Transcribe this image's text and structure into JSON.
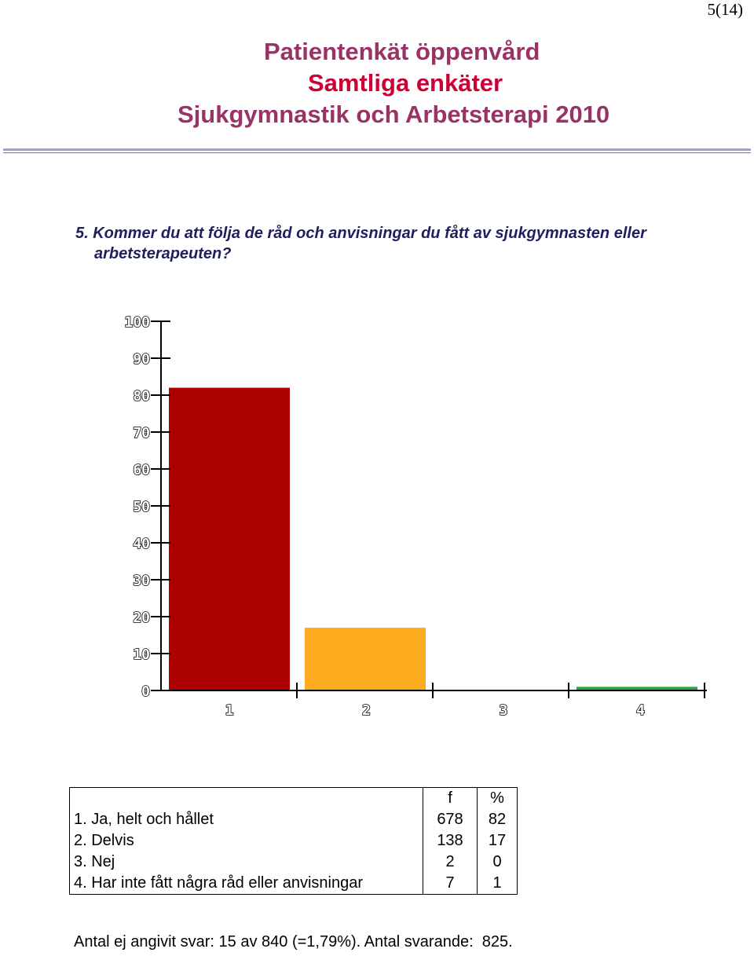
{
  "page": {
    "number": "5(14)"
  },
  "header": {
    "line1": "Patientenkät öppenvård",
    "line2": "Samtliga enkäter",
    "line3": "Sjukgymnastik och Arbetsterapi 2010"
  },
  "question": {
    "line1": "5. Kommer du att följa de råd och anvisningar du fått av sjukgymnasten eller",
    "line2": "arbetsterapeuten?"
  },
  "chart_data": {
    "type": "bar",
    "categories": [
      "1",
      "2",
      "3",
      "4"
    ],
    "values": [
      82,
      17,
      0,
      1
    ],
    "colors": [
      "#ad0000",
      "#fdab1e",
      "#7f7f7f",
      "#2ea53a"
    ],
    "ylim": [
      0,
      100
    ],
    "yticks": [
      0,
      10,
      20,
      30,
      40,
      50,
      60,
      70,
      80,
      90,
      100
    ],
    "title": "",
    "xlabel": "",
    "ylabel": "",
    "grid": false
  },
  "table": {
    "headers": [
      "",
      "f",
      "%"
    ],
    "rows": [
      [
        "1. Ja, helt och hållet",
        "678",
        "82"
      ],
      [
        "2. Delvis",
        "138",
        "17"
      ],
      [
        "3. Nej",
        "2",
        "0"
      ],
      [
        "4. Har inte fått några råd eller anvisningar",
        "7",
        "1"
      ]
    ]
  },
  "footer": {
    "text": "Antal ej angivit svar: 15 av 840 (=1,79%). Antal svarande:  825."
  }
}
